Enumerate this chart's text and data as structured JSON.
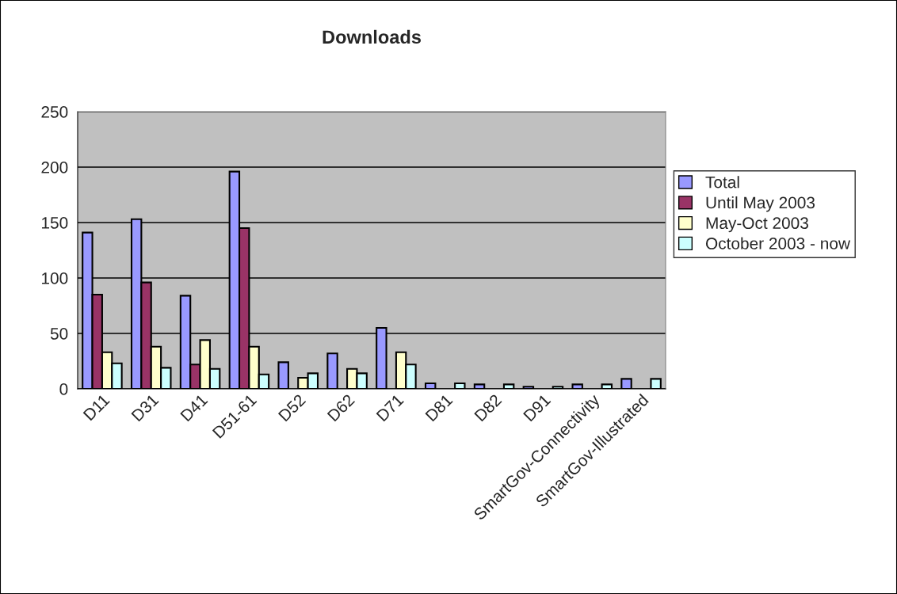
{
  "chart_data": {
    "type": "bar",
    "title": "Downloads",
    "categories": [
      "D11",
      "D31",
      "D41",
      "D51-61",
      "D52",
      "D62",
      "D71",
      "D81",
      "D82",
      "D91",
      "SmartGov-Connectivity",
      "SmartGov-Illustrated"
    ],
    "series": [
      {
        "name": "Total",
        "color": "#9999ff",
        "values": [
          141,
          153,
          84,
          196,
          24,
          32,
          55,
          5,
          4,
          2,
          4,
          9
        ]
      },
      {
        "name": "Until May 2003",
        "color": "#993366",
        "values": [
          85,
          96,
          22,
          145,
          null,
          null,
          null,
          null,
          null,
          null,
          null,
          null
        ]
      },
      {
        "name": "May-Oct 2003",
        "color": "#ffffcc",
        "values": [
          33,
          38,
          44,
          38,
          10,
          18,
          33,
          null,
          null,
          null,
          null,
          null
        ]
      },
      {
        "name": "October 2003 - now",
        "color": "#ccffff",
        "values": [
          23,
          19,
          18,
          13,
          14,
          14,
          22,
          5,
          4,
          2,
          4,
          9
        ]
      }
    ],
    "ylim": [
      0,
      250
    ],
    "yticks": [
      0,
      50,
      100,
      150,
      200,
      250
    ],
    "grid": "y",
    "legend": "right"
  }
}
